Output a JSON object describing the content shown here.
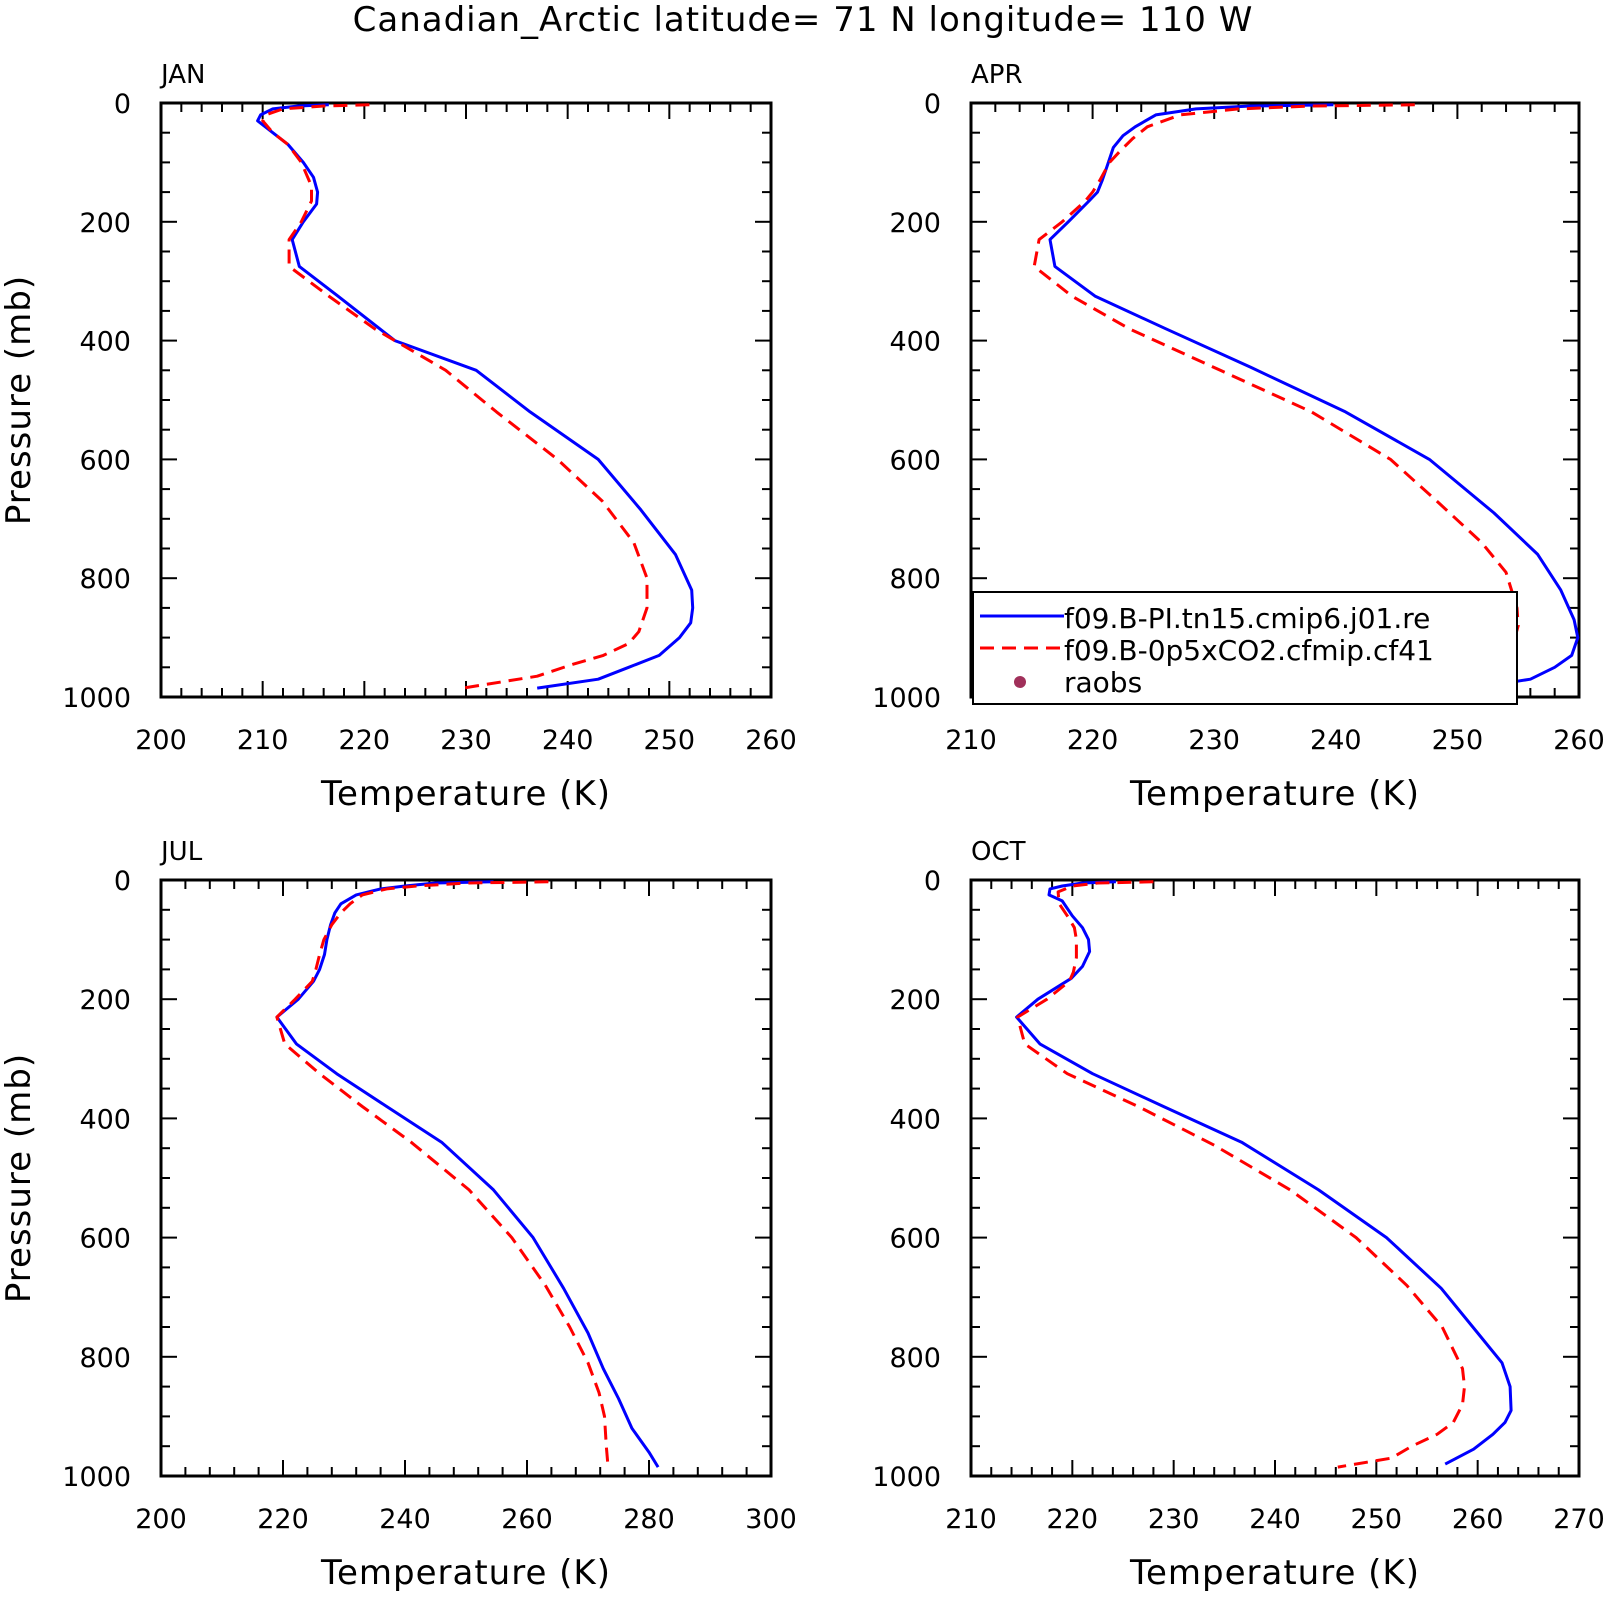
{
  "figure": {
    "title": "Canadian_Arctic  latitude= 71 N longitude= 110 W"
  },
  "legend": {
    "entries": [
      {
        "label": "f09.B-PI.tn15.cmip6.j01.re",
        "color": "#0000ff",
        "style": "solid"
      },
      {
        "label": "f09.B-0p5xCO2.cfmip.cf41",
        "color": "#ff0000",
        "style": "dashed"
      },
      {
        "label": "raobs",
        "color": "#a0305a",
        "style": "dot"
      }
    ]
  },
  "chart_data": [
    {
      "type": "line",
      "title": "JAN",
      "xlabel": "Temperature (K)",
      "ylabel": "Pressure (mb)",
      "xlim": [
        200,
        260
      ],
      "ylim": [
        1000,
        0
      ],
      "xticks": [
        200,
        210,
        220,
        230,
        240,
        250,
        260
      ],
      "yticks": [
        0,
        200,
        400,
        600,
        800,
        1000
      ],
      "grid": false,
      "series": [
        {
          "name": "f09.B-PI.tn15.cmip6.j01.re",
          "color": "#0000ff",
          "dash": "solid",
          "points": [
            [
              216.5,
              3
            ],
            [
              213.5,
              5
            ],
            [
              211,
              10
            ],
            [
              209.8,
              20
            ],
            [
              209.5,
              30
            ],
            [
              211,
              50
            ],
            [
              212.5,
              70
            ],
            [
              214,
              100
            ],
            [
              215,
              125
            ],
            [
              215.4,
              150
            ],
            [
              215.3,
              170
            ],
            [
              214,
              200
            ],
            [
              212.9,
              230
            ],
            [
              213.6,
              275
            ],
            [
              217.4,
              325
            ],
            [
              223,
              400
            ],
            [
              231,
              450
            ],
            [
              236.3,
              520
            ],
            [
              243,
              600
            ],
            [
              247.2,
              685
            ],
            [
              250.6,
              760
            ],
            [
              252.2,
              820
            ],
            [
              252.3,
              850
            ],
            [
              252.1,
              875
            ],
            [
              251,
              900
            ],
            [
              249,
              930
            ],
            [
              246,
              950
            ],
            [
              243,
              970
            ],
            [
              237,
              985
            ]
          ]
        },
        {
          "name": "f09.B-0p5xCO2.cfmip.cf41",
          "color": "#ff0000",
          "dash": "dashed",
          "points": [
            [
              220.5,
              3
            ],
            [
              216,
              5
            ],
            [
              212,
              10
            ],
            [
              210.3,
              20
            ],
            [
              210,
              30
            ],
            [
              211,
              50
            ],
            [
              212.5,
              70
            ],
            [
              213.8,
              100
            ],
            [
              214.8,
              140
            ],
            [
              214.8,
              165
            ],
            [
              213.8,
              200
            ],
            [
              212.6,
              230
            ],
            [
              212.6,
              275
            ],
            [
              216.5,
              325
            ],
            [
              221,
              380
            ],
            [
              228,
              450
            ],
            [
              233,
              520
            ],
            [
              239,
              600
            ],
            [
              243.4,
              670
            ],
            [
              246.5,
              740
            ],
            [
              247.8,
              800
            ],
            [
              247.8,
              850
            ],
            [
              247,
              890
            ],
            [
              246,
              910
            ],
            [
              243.5,
              930
            ],
            [
              240.5,
              945
            ],
            [
              237,
              965
            ],
            [
              229.7,
              985
            ]
          ]
        }
      ]
    },
    {
      "type": "line",
      "title": "APR",
      "xlabel": "Temperature (K)",
      "ylabel": "",
      "xlim": [
        210,
        260
      ],
      "ylim": [
        1000,
        0
      ],
      "xticks": [
        210,
        220,
        230,
        240,
        250,
        260
      ],
      "yticks": [
        0,
        200,
        400,
        600,
        800,
        1000
      ],
      "grid": false,
      "series": [
        {
          "name": "f09.B-PI.tn15.cmip6.j01.re",
          "color": "#0000ff",
          "dash": "solid",
          "points": [
            [
              239.8,
              3
            ],
            [
              233,
              5
            ],
            [
              228.5,
              10
            ],
            [
              225.2,
              20
            ],
            [
              223.5,
              40
            ],
            [
              222.5,
              55
            ],
            [
              221.7,
              75
            ],
            [
              221.3,
              100
            ],
            [
              220.8,
              130
            ],
            [
              220.4,
              150
            ],
            [
              219.7,
              165
            ],
            [
              218,
              200
            ],
            [
              216.5,
              230
            ],
            [
              216.9,
              275
            ],
            [
              220.2,
              325
            ],
            [
              226,
              380
            ],
            [
              233,
              445
            ],
            [
              240.8,
              520
            ],
            [
              247.7,
              600
            ],
            [
              253,
              690
            ],
            [
              256.6,
              760
            ],
            [
              258.5,
              820
            ],
            [
              259.6,
              870
            ],
            [
              259.9,
              900
            ],
            [
              259.4,
              930
            ],
            [
              258,
              950
            ],
            [
              256,
              970
            ],
            [
              251.3,
              985
            ]
          ]
        },
        {
          "name": "f09.B-0p5xCO2.cfmip.cf41",
          "color": "#ff0000",
          "dash": "dashed",
          "points": [
            [
              246.5,
              3
            ],
            [
              238,
              5
            ],
            [
              232,
              10
            ],
            [
              227.2,
              20
            ],
            [
              224.5,
              40
            ],
            [
              223.3,
              60
            ],
            [
              222.3,
              80
            ],
            [
              221.4,
              100
            ],
            [
              220.6,
              130
            ],
            [
              220,
              150
            ],
            [
              219.4,
              165
            ],
            [
              217.5,
              200
            ],
            [
              215.6,
              230
            ],
            [
              215.2,
              275
            ],
            [
              218.3,
              325
            ],
            [
              223,
              380
            ],
            [
              230.5,
              450
            ],
            [
              238,
              520
            ],
            [
              244.5,
              600
            ],
            [
              248.3,
              670
            ],
            [
              252,
              740
            ],
            [
              254,
              790
            ],
            [
              254.9,
              850
            ],
            [
              255,
              880
            ],
            [
              254.6,
              910
            ],
            [
              253.5,
              930
            ],
            [
              251.8,
              945
            ],
            [
              248.8,
              965
            ],
            [
              245,
              985
            ]
          ]
        }
      ]
    },
    {
      "type": "line",
      "title": "JUL",
      "xlabel": "Temperature (K)",
      "ylabel": "Pressure (mb)",
      "xlim": [
        200,
        300
      ],
      "ylim": [
        1000,
        0
      ],
      "xticks": [
        200,
        220,
        240,
        260,
        280,
        300
      ],
      "yticks": [
        0,
        200,
        400,
        600,
        800,
        1000
      ],
      "grid": false,
      "series": [
        {
          "name": "f09.B-PI.tn15.cmip6.j01.re",
          "color": "#0000ff",
          "dash": "solid",
          "points": [
            [
              254.5,
              3
            ],
            [
              245,
              5
            ],
            [
              240,
              10
            ],
            [
              236,
              15
            ],
            [
              232,
              25
            ],
            [
              229.5,
              40
            ],
            [
              228.5,
              55
            ],
            [
              227.8,
              75
            ],
            [
              227.2,
              100
            ],
            [
              226.8,
              125
            ],
            [
              226,
              150
            ],
            [
              225,
              170
            ],
            [
              222.5,
              200
            ],
            [
              219,
              230
            ],
            [
              222.2,
              275
            ],
            [
              228.8,
              325
            ],
            [
              237,
              380
            ],
            [
              246,
              440
            ],
            [
              254.5,
              520
            ],
            [
              261,
              600
            ],
            [
              266,
              685
            ],
            [
              270,
              760
            ],
            [
              272.5,
              820
            ],
            [
              275,
              870
            ],
            [
              277.2,
              920
            ],
            [
              280,
              960
            ],
            [
              281.5,
              985
            ]
          ]
        },
        {
          "name": "f09.B-0p5xCO2.cfmip.cf41",
          "color": "#ff0000",
          "dash": "dashed",
          "points": [
            [
              263.5,
              3
            ],
            [
              250,
              5
            ],
            [
              242,
              10
            ],
            [
              237,
              15
            ],
            [
              233,
              25
            ],
            [
              231,
              40
            ],
            [
              229.5,
              55
            ],
            [
              228,
              75
            ],
            [
              226.7,
              100
            ],
            [
              226,
              125
            ],
            [
              225.4,
              150
            ],
            [
              224.8,
              170
            ],
            [
              222,
              200
            ],
            [
              219,
              230
            ],
            [
              220.3,
              275
            ],
            [
              226,
              325
            ],
            [
              233,
              380
            ],
            [
              241,
              440
            ],
            [
              250.5,
              520
            ],
            [
              257.5,
              600
            ],
            [
              263,
              680
            ],
            [
              267,
              750
            ],
            [
              270,
              810
            ],
            [
              271.8,
              860
            ],
            [
              272.7,
              900
            ],
            [
              273,
              950
            ],
            [
              273.3,
              985
            ]
          ]
        }
      ]
    },
    {
      "type": "line",
      "title": "OCT",
      "xlabel": "Temperature (K)",
      "ylabel": "",
      "xlim": [
        210,
        270
      ],
      "ylim": [
        1000,
        0
      ],
      "xticks": [
        210,
        220,
        230,
        240,
        250,
        260,
        270
      ],
      "yticks": [
        0,
        200,
        400,
        600,
        800,
        1000
      ],
      "grid": false,
      "series": [
        {
          "name": "f09.B-PI.tn15.cmip6.j01.re",
          "color": "#0000ff",
          "dash": "solid",
          "points": [
            [
              224.3,
              3
            ],
            [
              221,
              5
            ],
            [
              219,
              10
            ],
            [
              217.8,
              15
            ],
            [
              217.7,
              25
            ],
            [
              219,
              35
            ],
            [
              220,
              60
            ],
            [
              221,
              80
            ],
            [
              221.6,
              100
            ],
            [
              221.7,
              120
            ],
            [
              221,
              145
            ],
            [
              219.9,
              165
            ],
            [
              216.6,
              200
            ],
            [
              214.5,
              230
            ],
            [
              216.8,
              275
            ],
            [
              222,
              325
            ],
            [
              229,
              380
            ],
            [
              236.7,
              440
            ],
            [
              244.3,
              520
            ],
            [
              251,
              600
            ],
            [
              256.4,
              685
            ],
            [
              260,
              760
            ],
            [
              262.4,
              810
            ],
            [
              263.2,
              850
            ],
            [
              263.3,
              890
            ],
            [
              262.7,
              910
            ],
            [
              261.5,
              930
            ],
            [
              259.6,
              955
            ],
            [
              256.8,
              980
            ]
          ]
        },
        {
          "name": "f09.B-0p5xCO2.cfmip.cf41",
          "color": "#ff0000",
          "dash": "dashed",
          "points": [
            [
              228,
              3
            ],
            [
              222.5,
              5
            ],
            [
              220,
              10
            ],
            [
              218.6,
              20
            ],
            [
              218.7,
              40
            ],
            [
              219.5,
              60
            ],
            [
              220.2,
              80
            ],
            [
              220.4,
              100
            ],
            [
              220.4,
              130
            ],
            [
              220.1,
              155
            ],
            [
              219.7,
              170
            ],
            [
              217.5,
              200
            ],
            [
              214.6,
              230
            ],
            [
              215.3,
              275
            ],
            [
              219.5,
              325
            ],
            [
              226.5,
              380
            ],
            [
              234,
              445
            ],
            [
              241.5,
              520
            ],
            [
              248,
              600
            ],
            [
              253,
              680
            ],
            [
              256.5,
              750
            ],
            [
              258.5,
              820
            ],
            [
              258.7,
              850
            ],
            [
              258.5,
              880
            ],
            [
              257.6,
              910
            ],
            [
              256,
              930
            ],
            [
              253.5,
              950
            ],
            [
              251.5,
              970
            ],
            [
              246.2,
              985
            ]
          ]
        }
      ]
    }
  ]
}
